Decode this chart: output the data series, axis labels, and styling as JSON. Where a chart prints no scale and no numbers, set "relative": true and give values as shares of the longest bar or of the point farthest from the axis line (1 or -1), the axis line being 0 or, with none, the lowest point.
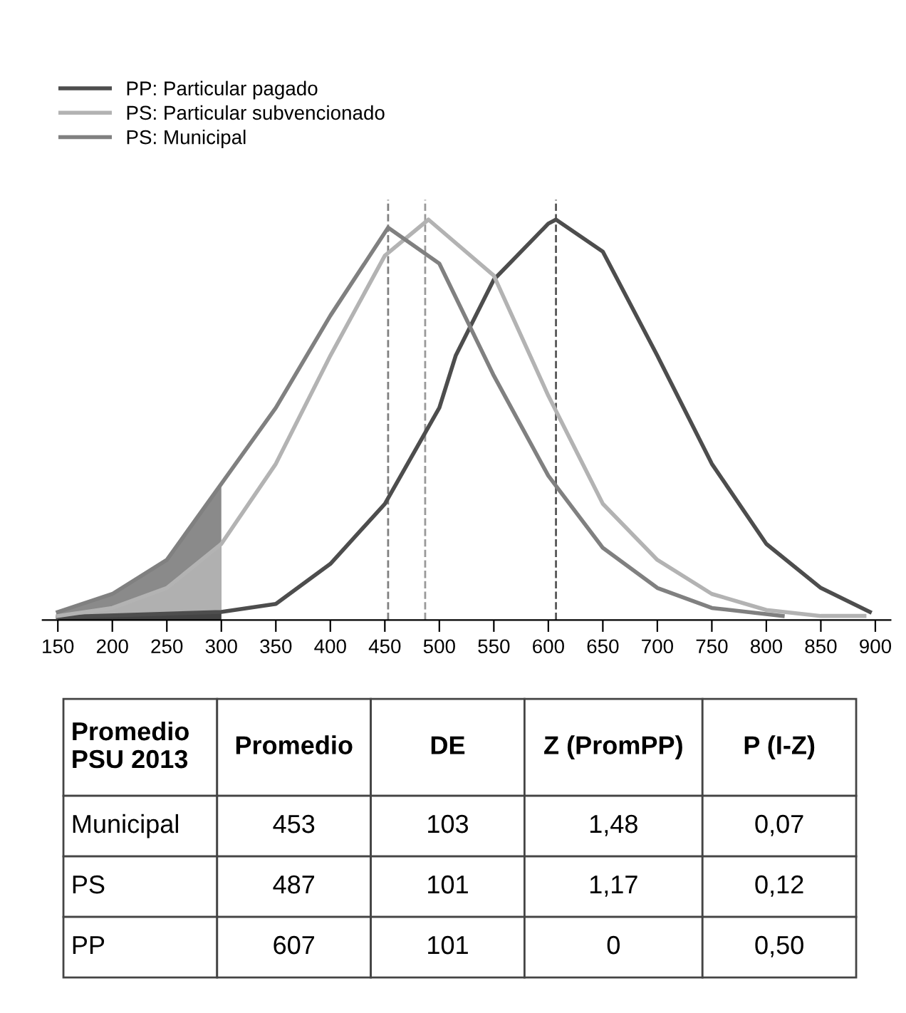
{
  "chart_data": {
    "type": "line",
    "relative": true,
    "series": [
      {
        "name": "PP: Particular pagado",
        "color": "#4d4d4d",
        "x": [
          150,
          300,
          350,
          400,
          450,
          500,
          515,
          550,
          600,
          607,
          650,
          700,
          750,
          800,
          850,
          895
        ],
        "values": [
          0.007,
          0.02,
          0.04,
          0.14,
          0.29,
          0.53,
          0.66,
          0.85,
          0.99,
          1.0,
          0.92,
          0.66,
          0.39,
          0.19,
          0.08,
          0.02
        ]
      },
      {
        "name": "PS: Particular subvencionado",
        "color": "#b3b3b3",
        "x": [
          150,
          200,
          250,
          300,
          350,
          400,
          450,
          490,
          550,
          600,
          650,
          700,
          750,
          800,
          850,
          890
        ],
        "values": [
          0.01,
          0.03,
          0.08,
          0.19,
          0.39,
          0.66,
          0.91,
          1.0,
          0.86,
          0.56,
          0.29,
          0.15,
          0.065,
          0.025,
          0.01,
          0.01
        ]
      },
      {
        "name": "PS: Municipal",
        "color": "#808080",
        "x": [
          150,
          200,
          250,
          300,
          350,
          400,
          453,
          500,
          550,
          600,
          650,
          700,
          750,
          815
        ],
        "values": [
          0.02,
          0.065,
          0.15,
          0.34,
          0.53,
          0.76,
          0.98,
          0.89,
          0.61,
          0.36,
          0.18,
          0.08,
          0.03,
          0.01
        ]
      },
      {
        "type": "area",
        "color": "#8a8a8a",
        "x": [
          150,
          200,
          250,
          300
        ],
        "values": [
          0.02,
          0.065,
          0.15,
          0.34
        ]
      },
      {
        "type": "area",
        "color": "#b0b0b0",
        "x": [
          150,
          200,
          250,
          300
        ],
        "values": [
          0.01,
          0.03,
          0.08,
          0.19
        ]
      },
      {
        "type": "area",
        "color": "#444444",
        "x": [
          150,
          300
        ],
        "values": [
          0.007,
          0.02
        ]
      }
    ],
    "xlim": [
      136,
      914
    ],
    "xticks": [
      150,
      200,
      250,
      300,
      350,
      400,
      450,
      500,
      550,
      600,
      650,
      700,
      750,
      800,
      850,
      900
    ],
    "ref_lines": [
      {
        "axis": "x",
        "value": 453,
        "color": "#808080",
        "line_style": "dashed"
      },
      {
        "axis": "x",
        "value": 487,
        "color": "#999999",
        "line_style": "dashed"
      },
      {
        "axis": "x",
        "value": 607,
        "color": "#555555",
        "line_style": "dashed"
      }
    ],
    "legend": "top left",
    "grid": false,
    "annotations": [
      "Promedio\nPSU 2013",
      "Promedio",
      "DE",
      "Z (PromPP)",
      "P (I-Z)",
      "Municipal",
      "453",
      "103",
      "1,48",
      "0,07",
      "PS",
      "487",
      "101",
      "1,17",
      "0,12",
      "PP",
      "607",
      "101",
      "0",
      "0,50"
    ]
  }
}
